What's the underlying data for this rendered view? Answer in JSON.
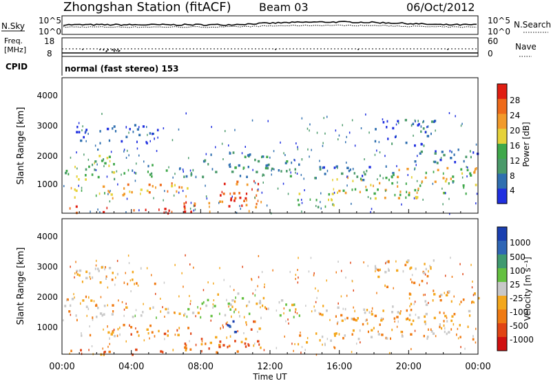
{
  "header": {
    "title": "Zhongshan Station (fitACF)",
    "beam": "Beam 03",
    "date": "06/Oct/2012"
  },
  "summary_panels": {
    "nsky_label": "N.Sky",
    "nsearch_label": "N.Search",
    "noise_ticks_left": [
      "10^5",
      "10^0"
    ],
    "noise_ticks_right": [
      "10^5",
      "10^0"
    ],
    "freq_label_1": "Freq.",
    "freq_label_2": "[MHz]",
    "freq_ticks": [
      "18",
      "8"
    ],
    "nave_label": "Nave",
    "nave_ticks": [
      "60",
      "0"
    ],
    "cpid_label": "CPID",
    "cpid_value": "normal (fast stereo) 153"
  },
  "colors": {
    "power_scale": [
      "#1f2fe0",
      "#2f6fb0",
      "#4a9a6a",
      "#3fa84a",
      "#e6d23a",
      "#f29a2a",
      "#ee6a1a",
      "#e01e12"
    ],
    "velocity_scale": [
      "#1a3fb0",
      "#2f66b5",
      "#3f9a70",
      "#64c040",
      "#c8c8c8",
      "#f4a71c",
      "#f07a12",
      "#e14414",
      "#d01010"
    ]
  },
  "chart_data": [
    {
      "type": "heatmap",
      "panel": "power",
      "ylabel": "Slant Range [km]",
      "yticks": [
        "1000",
        "2000",
        "3000",
        "4000"
      ],
      "ylim": [
        180,
        4600
      ],
      "xlim": [
        "00:00",
        "24:00"
      ],
      "colorbar_label": "Power [dB]",
      "colorbar_ticks": [
        "4",
        "8",
        "12",
        "16",
        "20",
        "24",
        "28"
      ],
      "colorbar_range": [
        0,
        32
      ]
    },
    {
      "type": "heatmap",
      "panel": "velocity",
      "ylabel": "Slant Range [km]",
      "yticks": [
        "1000",
        "2000",
        "3000",
        "4000"
      ],
      "ylim": [
        180,
        4600
      ],
      "xlim": [
        "00:00",
        "24:00"
      ],
      "colorbar_label": "Velocity [m s⁻¹]",
      "colorbar_ticks": [
        "1000",
        "500",
        "100",
        "25",
        "-25",
        "-100",
        "-500",
        "-1000"
      ]
    }
  ],
  "xaxis": {
    "ticks": [
      "00:00",
      "04:00",
      "08:00",
      "12:00",
      "16:00",
      "20:00",
      "00:00"
    ],
    "label": "Time UT"
  }
}
